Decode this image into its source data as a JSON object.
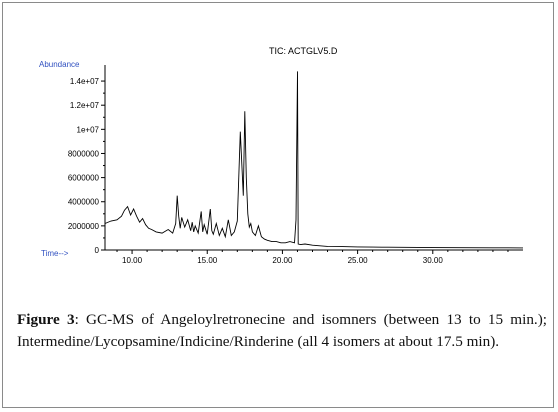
{
  "chart_data": {
    "type": "line",
    "title": "TIC: ACTGLV5.D",
    "ylabel": "Abundance",
    "xlabel": "Time-->",
    "xlim": [
      8.2,
      36.0
    ],
    "ylim": [
      0,
      15000000
    ],
    "x_ticks": [
      10,
      15,
      20,
      25,
      30
    ],
    "x_tick_labels": [
      "10.00",
      "15.00",
      "20.00",
      "25.00",
      "30.00"
    ],
    "y_ticks": [
      0,
      2000000,
      4000000,
      6000000,
      8000000,
      10000000,
      12000000,
      14000000
    ],
    "y_tick_labels": [
      "0",
      "2000000",
      "4000000",
      "6000000",
      "8000000",
      "1e+07",
      "1.2e+07",
      "1.4e+07"
    ],
    "grid": false,
    "series": [
      {
        "x": [
          8.2,
          8.6,
          9.0,
          9.3,
          9.5,
          9.7,
          9.9,
          10.1,
          10.3,
          10.5,
          10.7,
          10.9,
          11.1,
          11.3,
          11.6,
          12.0,
          12.4,
          12.7,
          12.9,
          13.0,
          13.1,
          13.2,
          13.3,
          13.5,
          13.7,
          13.9,
          14.0,
          14.1,
          14.2,
          14.4,
          14.6,
          14.7,
          14.8,
          15.0,
          15.2,
          15.3,
          15.4,
          15.6,
          15.8,
          16.0,
          16.2,
          16.4,
          16.6,
          16.8,
          17.0,
          17.2,
          17.4,
          17.5,
          17.6,
          17.7,
          17.8,
          17.9,
          18.0,
          18.2,
          18.4,
          18.6,
          18.8,
          19.0,
          19.3,
          19.6,
          19.9,
          20.2,
          20.5,
          20.8,
          20.9,
          21.0,
          21.05,
          21.2,
          21.5,
          22.0,
          22.5,
          23.0,
          24.0,
          25.0,
          26.0,
          27.0,
          28.0,
          30.0,
          32.0,
          34.0,
          36.0
        ],
        "y": [
          2200000,
          2400000,
          2500000,
          2800000,
          3300000,
          3600000,
          2900000,
          3400000,
          2800000,
          2300000,
          2600000,
          2100000,
          1800000,
          1700000,
          1500000,
          1400000,
          1700000,
          1400000,
          2200000,
          4500000,
          2800000,
          1800000,
          2700000,
          1900000,
          2500000,
          1600000,
          2300000,
          1500000,
          2000000,
          1400000,
          3200000,
          1500000,
          2100000,
          1300000,
          3400000,
          1600000,
          1300000,
          2200000,
          1200000,
          1800000,
          1100000,
          2500000,
          1200000,
          1500000,
          2400000,
          9800000,
          4500000,
          11500000,
          6000000,
          3000000,
          1900000,
          2200000,
          1500000,
          1200000,
          2000000,
          1100000,
          900000,
          800000,
          700000,
          700000,
          600000,
          600000,
          700000,
          600000,
          2500000,
          14800000,
          500000,
          450000,
          500000,
          400000,
          350000,
          300000,
          280000,
          260000,
          240000,
          230000,
          220000,
          200000,
          190000,
          180000,
          170000
        ]
      }
    ]
  },
  "caption": {
    "label": "Figure 3",
    "text": ": GC-MS of Angeloylretronecine and isomners (between 13 to 15 min.); Intermedine/Lycopsamine/Indicine/Rinderine (all 4 isomers at about 17.5 min)."
  },
  "colors": {
    "axis_label": "#3050c0",
    "trace": "#000000"
  }
}
